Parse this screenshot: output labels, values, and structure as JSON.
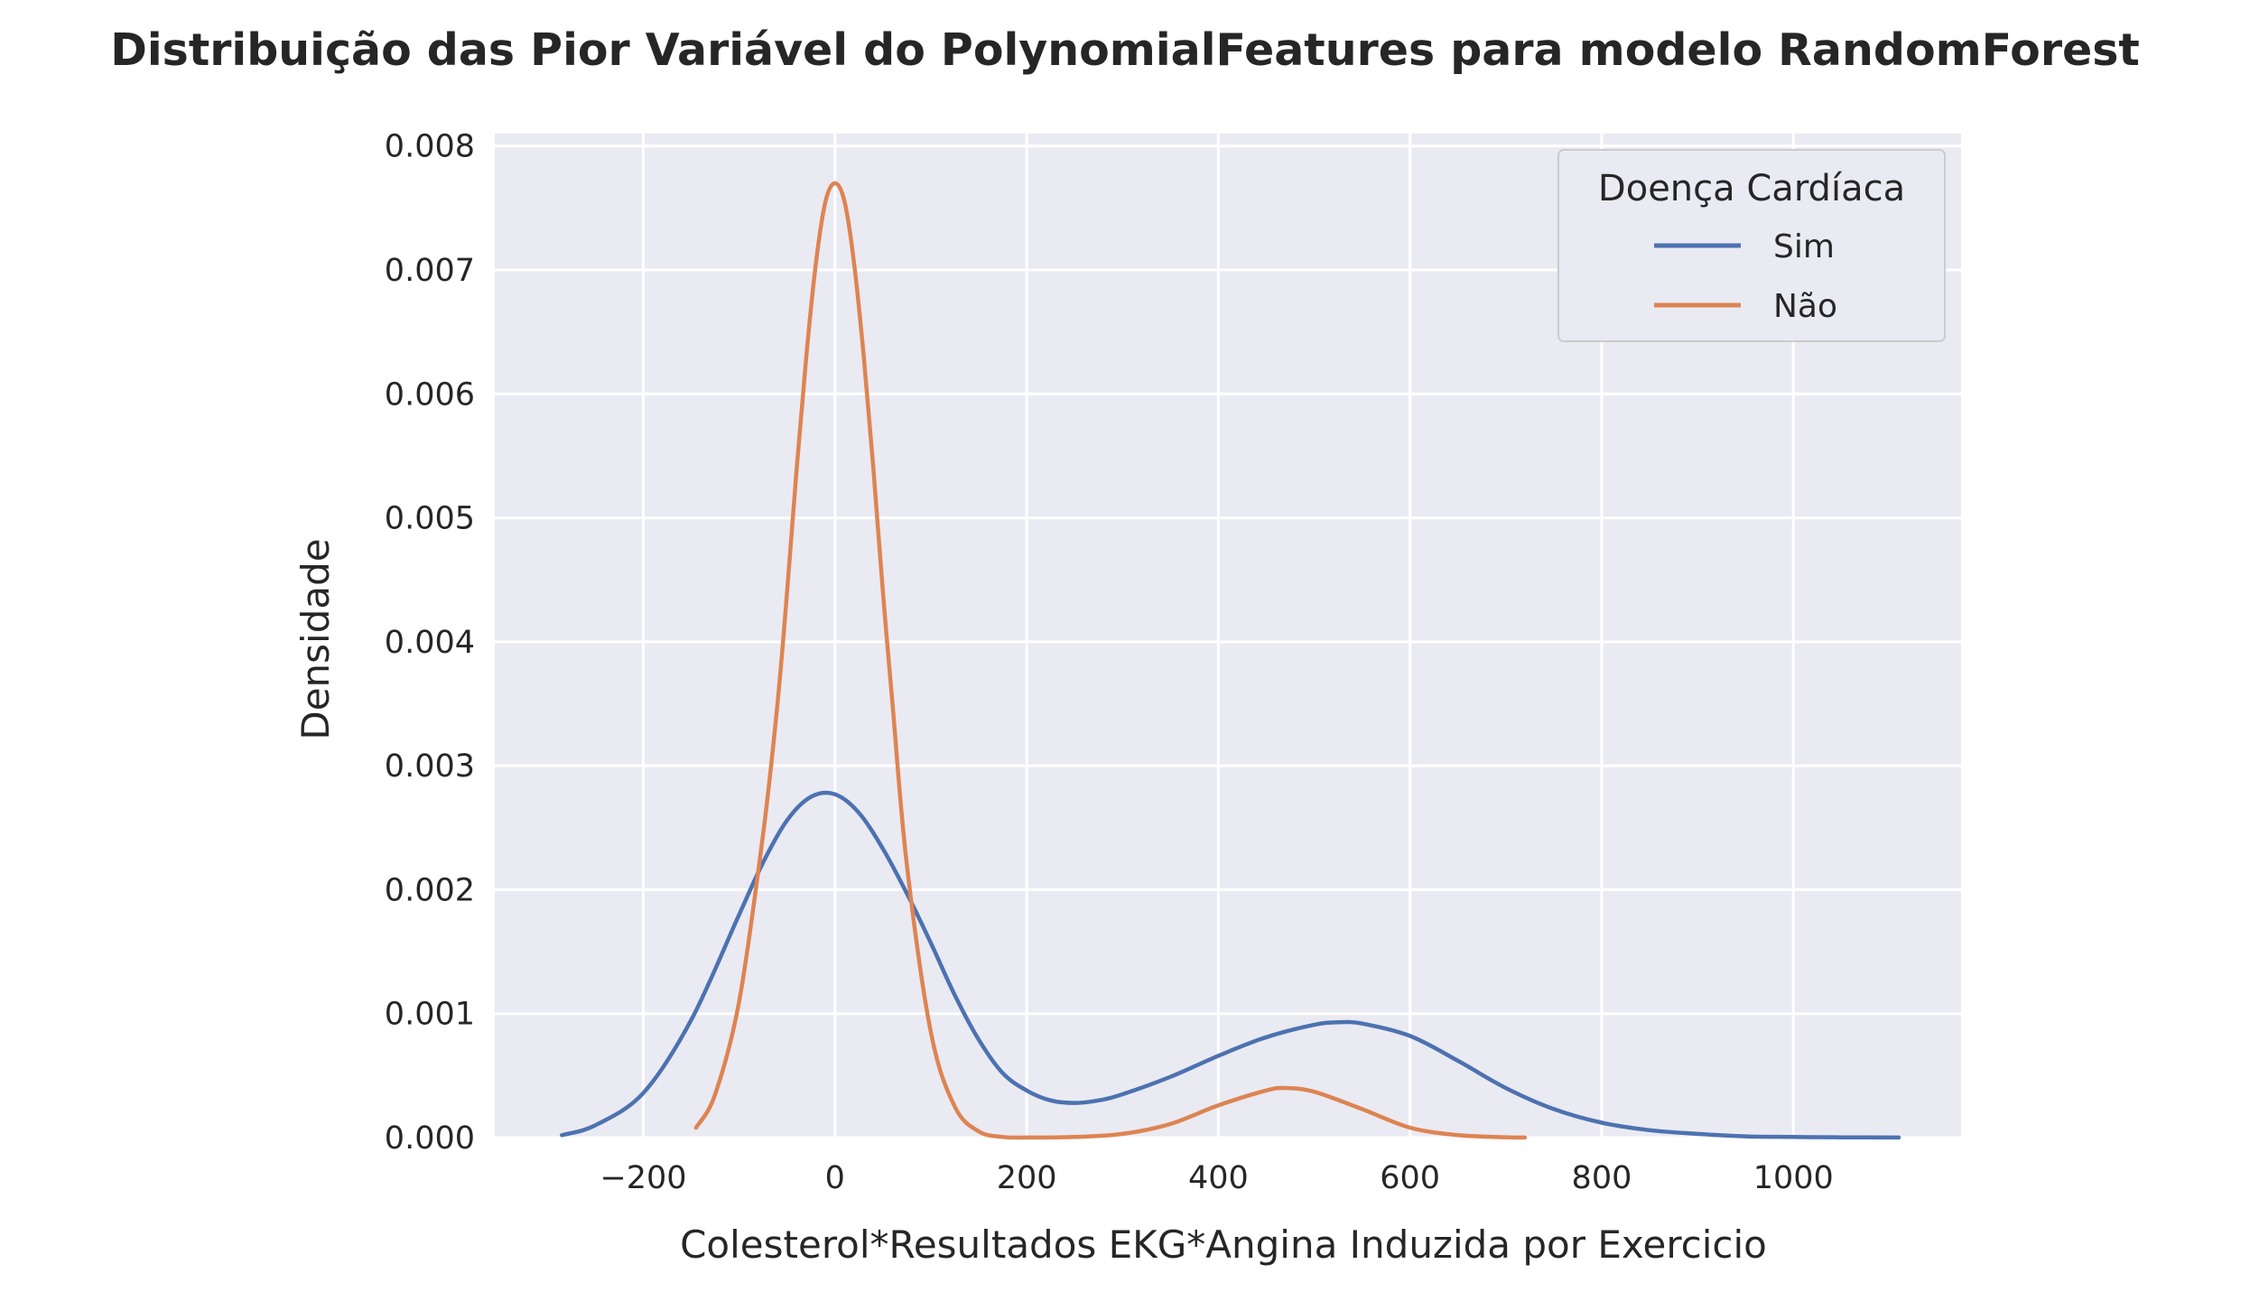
{
  "chart_data": {
    "type": "line",
    "title": "Distribuição das Pior Variável do PolynomialFeatures para modelo RandomForest",
    "xlabel": "Colesterol*Resultados EKG*Angina Induzida por Exercicio",
    "ylabel": "Densidade",
    "xlim": [
      -355,
      1175
    ],
    "ylim": [
      0,
      0.0081
    ],
    "xticks": [
      -200,
      0,
      200,
      400,
      600,
      800,
      1000
    ],
    "xtick_labels": [
      "−200",
      "0",
      "200",
      "400",
      "600",
      "800",
      "1000"
    ],
    "yticks": [
      0,
      0.001,
      0.002,
      0.003,
      0.004,
      0.005,
      0.006,
      0.007,
      0.008
    ],
    "ytick_labels": [
      "0.000",
      "0.001",
      "0.002",
      "0.003",
      "0.004",
      "0.005",
      "0.006",
      "0.007",
      "0.008"
    ],
    "grid": true,
    "background": "#eaeaf2",
    "legend": {
      "title": "Doença Cardíaca",
      "placement": "top-right"
    },
    "series": [
      {
        "name": "Sim",
        "color": "#4c72b0",
        "x": [
          -285,
          -250,
          -200,
          -150,
          -100,
          -75,
          -50,
          -25,
          0,
          25,
          50,
          75,
          100,
          125,
          150,
          175,
          200,
          225,
          250,
          275,
          300,
          350,
          400,
          450,
          500,
          525,
          550,
          600,
          650,
          700,
          750,
          800,
          850,
          900,
          950,
          1000,
          1050,
          1110
        ],
        "y": [
          2e-05,
          0.0001,
          0.00036,
          0.00095,
          0.0018,
          0.00222,
          0.00256,
          0.00275,
          0.00277,
          0.00262,
          0.00233,
          0.00197,
          0.00157,
          0.00115,
          0.00079,
          0.00052,
          0.00038,
          0.0003,
          0.00028,
          0.0003,
          0.00035,
          0.00049,
          0.00066,
          0.00081,
          0.00091,
          0.00093,
          0.00092,
          0.00082,
          0.00062,
          0.0004,
          0.00023,
          0.00012,
          6e-05,
          3e-05,
          1e-05,
          5e-06,
          2e-06,
          1e-06
        ]
      },
      {
        "name": "Não",
        "color": "#dd8452",
        "x": [
          -145,
          -125,
          -100,
          -75,
          -60,
          -50,
          -40,
          -30,
          -20,
          -10,
          0,
          10,
          20,
          30,
          40,
          50,
          60,
          75,
          100,
          125,
          150,
          175,
          200,
          250,
          300,
          350,
          400,
          450,
          470,
          500,
          550,
          600,
          650,
          700,
          720
        ],
        "y": [
          8e-05,
          0.00035,
          0.0011,
          0.00245,
          0.0035,
          0.0044,
          0.0054,
          0.0063,
          0.00705,
          0.00755,
          0.0077,
          0.00755,
          0.00705,
          0.0063,
          0.0054,
          0.0044,
          0.0035,
          0.0022,
          0.00085,
          0.00025,
          5e-05,
          5e-06,
          1e-06,
          5e-06,
          3e-05,
          0.00011,
          0.00026,
          0.00038,
          0.0004,
          0.00037,
          0.00023,
          8e-05,
          2e-05,
          3e-06,
          1e-06
        ]
      }
    ]
  }
}
